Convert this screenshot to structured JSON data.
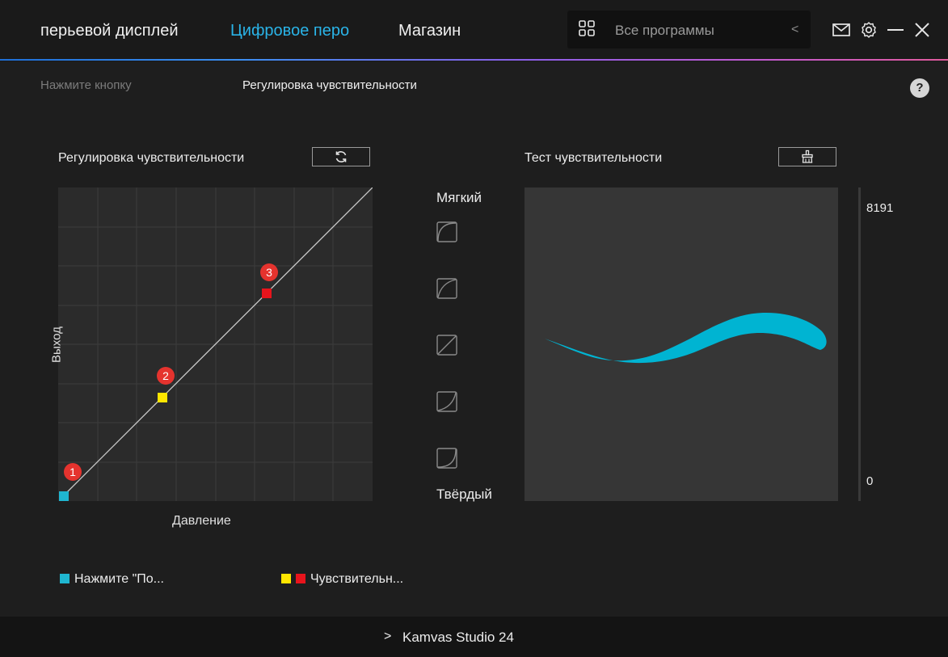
{
  "nav": {
    "tabs": [
      {
        "label": "перьевой дисплей",
        "active": false
      },
      {
        "label": "Цифровое перо",
        "active": true
      },
      {
        "label": "Магазин",
        "active": false
      }
    ],
    "accent_color": "#2ab4e8"
  },
  "program_selector": {
    "label": "Все программы",
    "icon": "grid-icon",
    "chevron": "<"
  },
  "header_icons": [
    "mail-icon",
    "gear-icon",
    "minimize-icon",
    "close-icon"
  ],
  "subtabs": [
    {
      "label": "Нажмите кнопку",
      "active": false
    },
    {
      "label": "Регулировка чувствительности",
      "active": true
    }
  ],
  "help_label": "?",
  "sensitivity": {
    "title": "Регулировка чувствительности",
    "reset_icon": "refresh-icon",
    "x_label": "Давление",
    "y_label": "Выход",
    "points": [
      {
        "id": "1",
        "color": "#1fb6d0",
        "x": 0,
        "y": 0
      },
      {
        "id": "2",
        "color": "#ffe600",
        "x": 0.33,
        "y": 0.33
      },
      {
        "id": "3",
        "color": "#e8141c",
        "x": 0.66,
        "y": 0.66
      }
    ]
  },
  "presets": {
    "top_label": "Мягкий",
    "bottom_label": "Твёрдый",
    "items": [
      "preset-soft-icon",
      "preset-medium-soft-icon",
      "preset-linear-icon",
      "preset-medium-hard-icon",
      "preset-hard-icon"
    ]
  },
  "test": {
    "title": "Тест чувствительности",
    "clear_icon": "clear-icon",
    "stroke_color": "#00b4d2",
    "max_value": "8191",
    "min_value": "0"
  },
  "legend": {
    "item1": {
      "label": "Нажмите \"По...",
      "color": "#1fb6d0"
    },
    "item2": {
      "label": "Чувствительн...",
      "colors": [
        "#ffe600",
        "#e8141c"
      ]
    }
  },
  "footer": {
    "chevron": ">",
    "device_name": "Kamvas Studio 24"
  }
}
